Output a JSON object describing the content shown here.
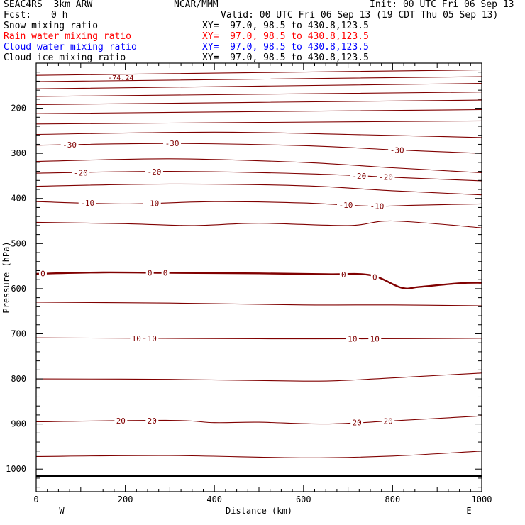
{
  "header": {
    "model": "SEAC4RS  3km ARW",
    "org": "NCAR/MMM",
    "init": "Init: 00 UTC Fri 06 Sep 13",
    "fcst_label": "Fcst:",
    "fcst_value": "0 h",
    "valid": "Valid: 00 UTC Fri 06 Sep 13 (19 CDT Thu 05 Sep 13)"
  },
  "legend": [
    {
      "name": "Snow mixing ratio",
      "xy": "XY=  97.0, 98.5 to 430.8,123.5",
      "color": "#000000"
    },
    {
      "name": "Rain water mixing ratio",
      "xy": "XY=  97.0, 98.5 to 430.8,123.5",
      "color": "#ff0000"
    },
    {
      "name": "Cloud water mixing ratio",
      "xy": "XY=  97.0, 98.5 to 430.8,123.5",
      "color": "#0000ff"
    },
    {
      "name": "Cloud ice mixing ratio",
      "xy": "XY=  97.0, 98.5 to 430.8,123.5",
      "color": "#000000"
    }
  ],
  "colors": {
    "contour": "#800000",
    "axis": "#000000",
    "background": "#ffffff"
  },
  "chart_data": {
    "type": "line",
    "xlabel": "Distance (km)",
    "ylabel": "Pressure (hPa)",
    "xlim": [
      0,
      1000
    ],
    "ylim": [
      1050,
      100
    ],
    "yscale": "linear",
    "x_ticks": [
      "0",
      "200",
      "400",
      "600",
      "800",
      "1000"
    ],
    "y_ticks": [
      "200",
      "300",
      "400",
      "500",
      "600",
      "700",
      "800",
      "900",
      "1000"
    ],
    "direction_labels": {
      "left": "W",
      "right": "E"
    },
    "max_label": "-74.24",
    "surface_pressure": 1015,
    "contours": [
      {
        "level": "-70",
        "bold": false,
        "x": [
          0,
          1000
        ],
        "p": [
          127,
          115
        ],
        "labels": []
      },
      {
        "level": "-65",
        "bold": false,
        "x": [
          0,
          1000
        ],
        "p": [
          141,
          130
        ],
        "labels": []
      },
      {
        "level": "-60",
        "bold": false,
        "x": [
          0,
          1000
        ],
        "p": [
          157,
          145
        ],
        "labels": []
      },
      {
        "level": "-55",
        "bold": false,
        "x": [
          0,
          1000
        ],
        "p": [
          174,
          164
        ],
        "labels": []
      },
      {
        "level": "-50",
        "bold": false,
        "x": [
          0,
          1000
        ],
        "p": [
          192,
          182
        ],
        "labels": []
      },
      {
        "level": "-45",
        "bold": false,
        "x": [
          0,
          1000
        ],
        "p": [
          212,
          203
        ],
        "labels": []
      },
      {
        "level": "-40",
        "bold": false,
        "x": [
          0,
          1000
        ],
        "p": [
          235,
          228
        ],
        "labels": []
      },
      {
        "level": "-35",
        "bold": false,
        "x": [
          0,
          400,
          700,
          1000
        ],
        "p": [
          258,
          253,
          258,
          265
        ],
        "labels": []
      },
      {
        "level": "-30",
        "bold": false,
        "x": [
          0,
          300,
          600,
          800,
          1000
        ],
        "p": [
          282,
          278,
          283,
          292,
          300
        ],
        "labels": [
          {
            "text": "-30",
            "x": 75
          },
          {
            "text": "-30",
            "x": 305
          },
          {
            "text": "-30",
            "x": 810
          }
        ]
      },
      {
        "level": "-25",
        "bold": false,
        "x": [
          0,
          300,
          600,
          800,
          1000
        ],
        "p": [
          318,
          312,
          320,
          332,
          343
        ],
        "labels": []
      },
      {
        "level": "-20",
        "bold": false,
        "x": [
          0,
          300,
          600,
          800,
          1000
        ],
        "p": [
          344,
          340,
          345,
          353,
          361
        ],
        "labels": [
          {
            "text": "-20",
            "x": 100
          },
          {
            "text": "-20",
            "x": 265
          },
          {
            "text": "-20",
            "x": 725
          },
          {
            "text": "-20",
            "x": 785
          }
        ]
      },
      {
        "level": "-15",
        "bold": false,
        "x": [
          0,
          300,
          600,
          800,
          1000
        ],
        "p": [
          373,
          368,
          372,
          383,
          392
        ],
        "labels": []
      },
      {
        "level": "-10",
        "bold": false,
        "x": [
          0,
          200,
          400,
          600,
          750,
          850,
          1000
        ],
        "p": [
          407,
          412,
          407,
          410,
          417,
          415,
          412
        ],
        "labels": [
          {
            "text": "-10",
            "x": 115
          },
          {
            "text": "-10",
            "x": 260
          },
          {
            "text": "-10",
            "x": 695
          },
          {
            "text": "-10",
            "x": 765
          }
        ]
      },
      {
        "level": "-5",
        "bold": false,
        "x": [
          0,
          200,
          350,
          500,
          700,
          800,
          1000
        ],
        "p": [
          453,
          456,
          460,
          455,
          460,
          450,
          465
        ],
        "labels": []
      },
      {
        "level": "0",
        "bold": true,
        "x": [
          0,
          150,
          300,
          500,
          650,
          750,
          820,
          860,
          950,
          1000
        ],
        "p": [
          567,
          564,
          565,
          566,
          568,
          570,
          598,
          596,
          588,
          587
        ],
        "labels": [
          {
            "text": "0",
            "x": 15
          },
          {
            "text": "0",
            "x": 255
          },
          {
            "text": "0",
            "x": 290
          },
          {
            "text": "0",
            "x": 690
          },
          {
            "text": "0",
            "x": 760
          }
        ]
      },
      {
        "level": "5",
        "bold": false,
        "x": [
          0,
          300,
          600,
          800,
          1000
        ],
        "p": [
          630,
          632,
          636,
          636,
          638
        ],
        "labels": []
      },
      {
        "level": "10",
        "bold": false,
        "x": [
          0,
          250,
          500,
          750,
          1000
        ],
        "p": [
          709,
          710,
          711,
          711,
          710
        ],
        "labels": [
          {
            "text": "10",
            "x": 225
          },
          {
            "text": "10",
            "x": 260
          },
          {
            "text": "10",
            "x": 710
          },
          {
            "text": "10",
            "x": 760
          }
        ]
      },
      {
        "level": "15",
        "bold": false,
        "x": [
          0,
          300,
          600,
          700,
          850,
          1000
        ],
        "p": [
          800,
          801,
          805,
          803,
          795,
          787
        ],
        "labels": []
      },
      {
        "level": "20",
        "bold": false,
        "x": [
          0,
          300,
          400,
          500,
          650,
          800,
          1000
        ],
        "p": [
          895,
          892,
          897,
          896,
          900,
          893,
          882
        ],
        "labels": [
          {
            "text": "20",
            "x": 190
          },
          {
            "text": "20",
            "x": 260
          },
          {
            "text": "20",
            "x": 720
          },
          {
            "text": "20",
            "x": 790
          }
        ]
      },
      {
        "level": "25",
        "bold": false,
        "x": [
          0,
          300,
          600,
          800,
          1000
        ],
        "p": [
          972,
          970,
          975,
          971,
          960
        ],
        "labels": []
      }
    ]
  }
}
